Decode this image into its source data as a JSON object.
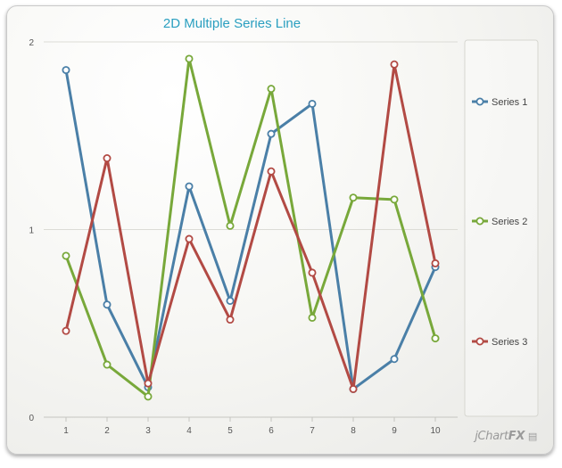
{
  "chart_data": {
    "type": "line",
    "title": "2D Multiple Series Line",
    "xlabel": "",
    "ylabel": "",
    "x": [
      "1",
      "2",
      "3",
      "4",
      "5",
      "6",
      "7",
      "8",
      "9",
      "10"
    ],
    "ylim": [
      0,
      2
    ],
    "yticks": [
      "0",
      "1",
      "2"
    ],
    "grid": true,
    "legend": "right",
    "series": [
      {
        "name": "Series 1",
        "color": "#4a7fa7",
        "values": [
          1.85,
          0.6,
          0.16,
          1.23,
          0.62,
          1.51,
          1.67,
          0.15,
          0.31,
          0.8
        ]
      },
      {
        "name": "Series 2",
        "color": "#78a83a",
        "values": [
          0.86,
          0.28,
          0.11,
          1.91,
          1.02,
          1.75,
          0.53,
          1.17,
          1.16,
          0.42
        ]
      },
      {
        "name": "Series 3",
        "color": "#b24a44",
        "values": [
          0.46,
          1.38,
          0.18,
          0.95,
          0.52,
          1.31,
          0.77,
          0.15,
          1.88,
          0.82
        ]
      }
    ]
  },
  "brand": {
    "text_a": "jChart",
    "text_b": "FX",
    "icon": "chart-logo-icon"
  }
}
